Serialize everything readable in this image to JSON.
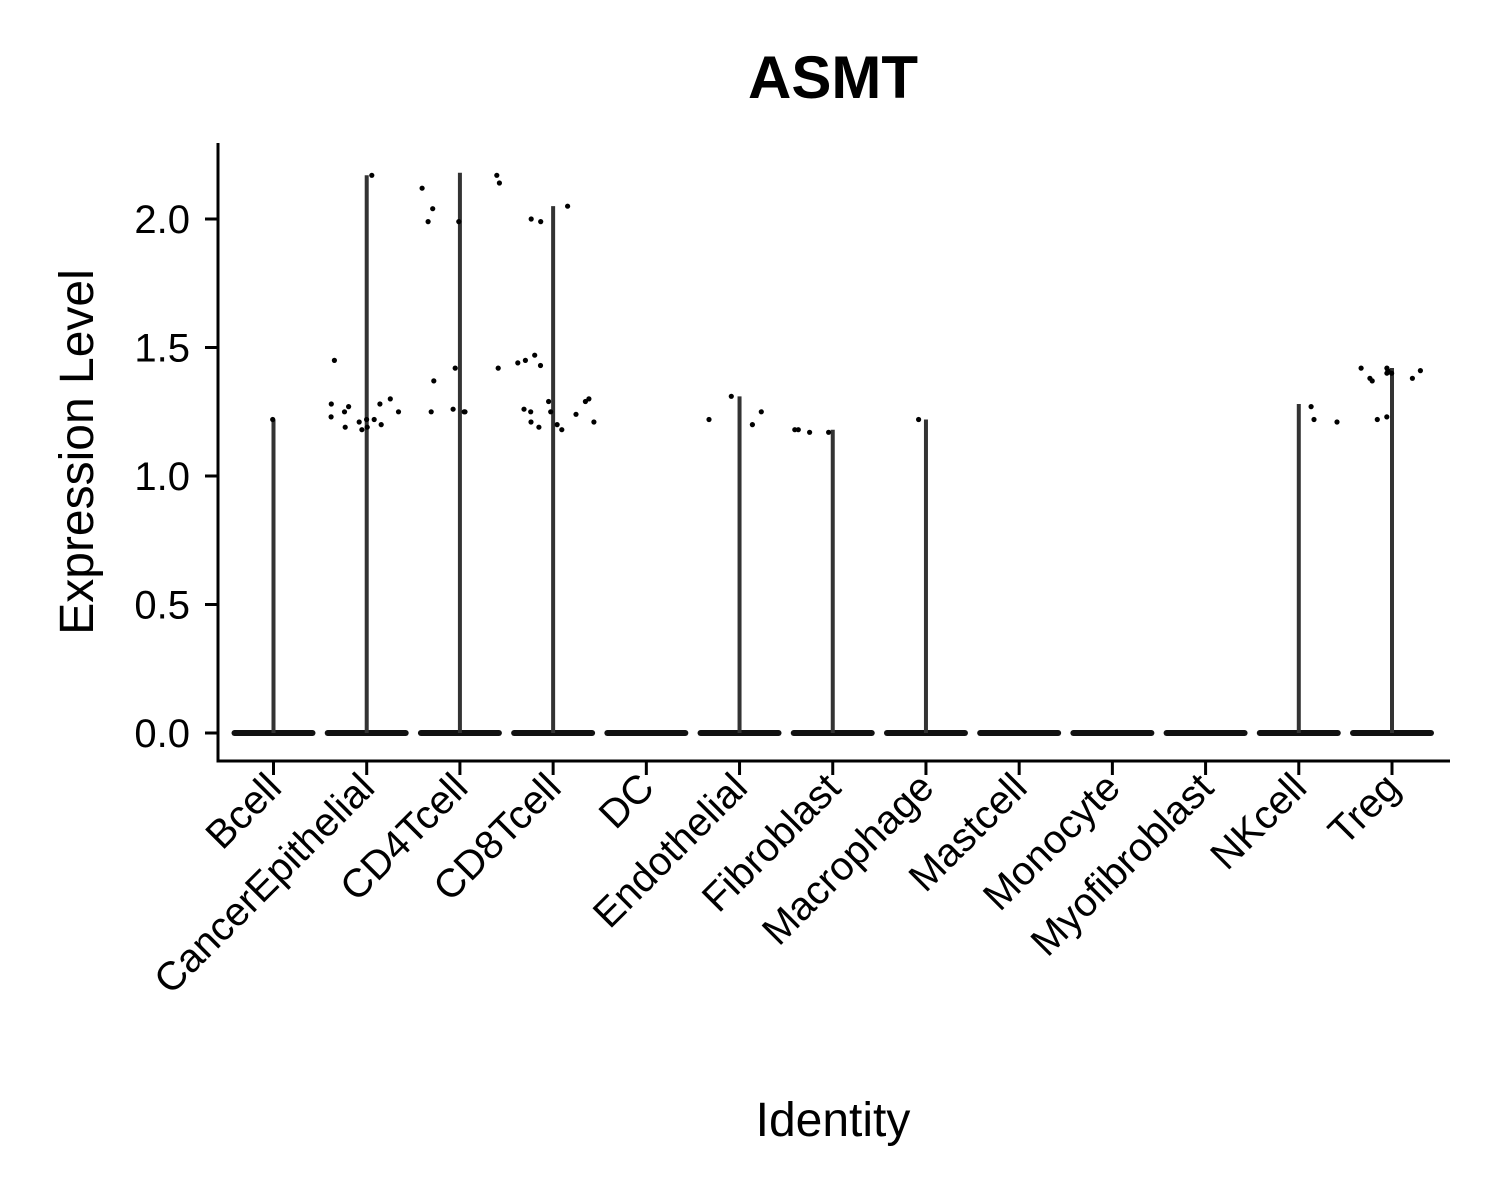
{
  "chart_data": {
    "type": "violin",
    "title": "ASMT",
    "xlabel": "Identity",
    "ylabel": "Expression Level",
    "ylim": [
      -0.11,
      2.3
    ],
    "yticks": [
      0.0,
      0.5,
      1.0,
      1.5,
      2.0
    ],
    "ytick_labels": [
      "0.0",
      "0.5",
      "1.0",
      "1.5",
      "2.0"
    ],
    "grid": false,
    "legend": "none",
    "categories": [
      "Bcell",
      "CancerEpithelial",
      "CD4Tcell",
      "CD8Tcell",
      "DC",
      "Endothelial",
      "Fibroblast",
      "Macrophage",
      "Mastcell",
      "Monocyte",
      "Myofibroblast",
      "NKcell",
      "Treg"
    ],
    "max_values": [
      1.22,
      2.17,
      2.18,
      2.05,
      0.0,
      1.31,
      1.18,
      1.22,
      0.0,
      0.0,
      0.0,
      1.28,
      1.42
    ],
    "points": [
      {
        "category": "Bcell",
        "values": [
          1.22
        ]
      },
      {
        "category": "CancerEpithelial",
        "values": [
          2.17,
          1.45,
          1.19,
          1.18,
          1.19,
          1.28,
          1.25,
          1.22,
          1.21,
          1.27,
          1.3,
          1.28,
          1.23,
          1.22,
          1.25,
          1.2
        ]
      },
      {
        "category": "CD4Tcell",
        "values": [
          1.25,
          1.25,
          1.99,
          2.04,
          2.12,
          2.17,
          2.14,
          1.99,
          1.42,
          1.42,
          1.37,
          1.26,
          1.25
        ]
      },
      {
        "category": "CD8Tcell",
        "values": [
          2.05,
          1.47,
          1.45,
          1.21,
          1.29,
          1.25,
          1.2,
          1.19,
          1.26,
          1.24,
          1.99,
          1.43,
          1.44,
          1.3,
          2.0,
          1.29,
          1.25,
          1.21,
          1.18
        ]
      },
      {
        "category": "Endothelial",
        "values": [
          1.31,
          1.25,
          1.2,
          1.22
        ]
      },
      {
        "category": "Fibroblast",
        "values": [
          1.17,
          1.17,
          1.18,
          1.18
        ]
      },
      {
        "category": "Macrophage",
        "values": [
          1.22
        ]
      },
      {
        "category": "NKcell",
        "values": [
          1.22,
          1.27,
          1.21
        ]
      },
      {
        "category": "Treg",
        "values": [
          1.22,
          1.23,
          1.4,
          1.4,
          1.41,
          1.41,
          1.42,
          1.37,
          1.38,
          1.38,
          1.42
        ]
      }
    ]
  }
}
